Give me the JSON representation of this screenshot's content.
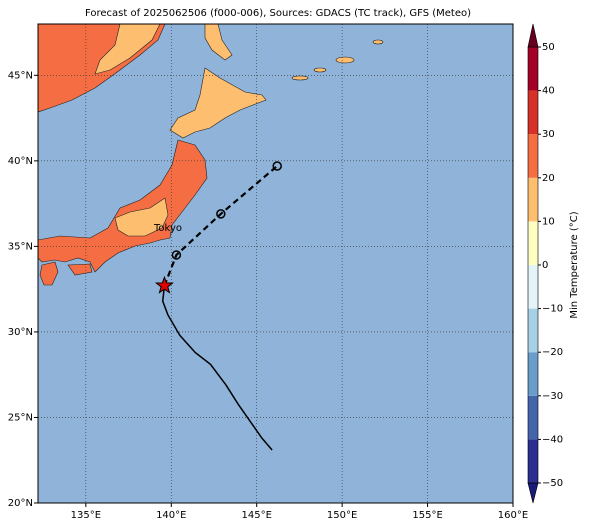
{
  "title": "Forecast of 2025062506 (f000-006), Sources: GDACS (TC track), GFS (Meteo)",
  "map": {
    "xlim": [
      132.2,
      160
    ],
    "ylim": [
      20,
      48
    ],
    "xticks": [
      {
        "value": 135,
        "label": "135°E"
      },
      {
        "value": 140,
        "label": "140°E"
      },
      {
        "value": 145,
        "label": "145°E"
      },
      {
        "value": 150,
        "label": "150°E"
      },
      {
        "value": 155,
        "label": "155°E"
      },
      {
        "value": 160,
        "label": "160°E"
      }
    ],
    "yticks": [
      {
        "value": 20,
        "label": "20°N"
      },
      {
        "value": 25,
        "label": "25°N"
      },
      {
        "value": 30,
        "label": "30°N"
      },
      {
        "value": 35,
        "label": "35°N"
      },
      {
        "value": 40,
        "label": "40°N"
      },
      {
        "value": 45,
        "label": "45°N"
      }
    ],
    "grid": true,
    "ocean_color": "#8fb3d9"
  },
  "city": "Tokyo",
  "track": {
    "color": "#000000",
    "current_color": "#e00000",
    "observed": {
      "lon": [
        145.9,
        145.3,
        144.6,
        143.9,
        143.2,
        142.3,
        141.4,
        140.5,
        139.8,
        139.5,
        139.6
      ],
      "lat": [
        23.1,
        23.8,
        24.8,
        25.8,
        26.9,
        28.1,
        28.8,
        29.8,
        31.0,
        31.8,
        32.7
      ]
    },
    "forecast": {
      "lon": [
        139.6,
        140.3,
        142.9,
        146.2
      ],
      "lat": [
        32.7,
        34.5,
        36.9,
        39.7
      ]
    }
  },
  "colorbar": {
    "label": "Min Temperature (°C)",
    "lim": [
      -50,
      50
    ],
    "ticks": [
      {
        "value": -50,
        "label": "−50"
      },
      {
        "value": -40,
        "label": "−40"
      },
      {
        "value": -30,
        "label": "−30"
      },
      {
        "value": -20,
        "label": "−20"
      },
      {
        "value": -10,
        "label": "−10"
      },
      0,
      10,
      20,
      30,
      40,
      50
    ],
    "colors": [
      "#2c2f8f",
      "#4565ab",
      "#6a9dca",
      "#a8d0e4",
      "#e3f3f8",
      "#fefec2",
      "#fdbe70",
      "#f46d43",
      "#d73027",
      "#a50026"
    ],
    "under_color": "#1a1a78",
    "over_color": "#67001f"
  }
}
